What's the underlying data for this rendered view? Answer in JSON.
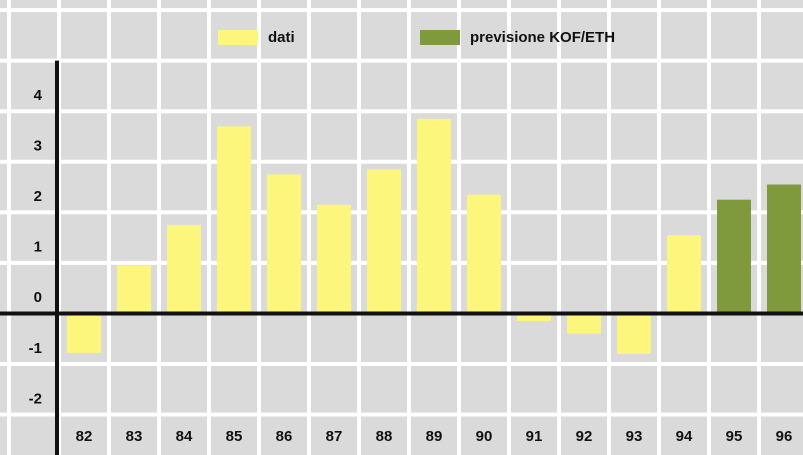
{
  "chart_data": {
    "type": "bar",
    "categories": [
      "82",
      "83",
      "84",
      "85",
      "86",
      "87",
      "88",
      "89",
      "90",
      "91",
      "92",
      "93",
      "94",
      "95",
      "96"
    ],
    "series": [
      {
        "name": "dati",
        "color": "#fcf67c",
        "values": [
          -0.78,
          0.95,
          1.75,
          3.7,
          2.75,
          2.15,
          2.85,
          3.85,
          2.35,
          -0.15,
          -0.4,
          -0.8,
          1.55,
          null,
          null
        ]
      },
      {
        "name": "previsione KOF/ETH",
        "color": "#7f9a3c",
        "values": [
          null,
          null,
          null,
          null,
          null,
          null,
          null,
          null,
          null,
          null,
          null,
          null,
          null,
          2.25,
          2.55
        ]
      }
    ],
    "ylim": [
      -2.8,
      6.2
    ],
    "yticks": [
      -2,
      -1,
      0,
      1,
      2,
      3,
      4
    ],
    "grid": true,
    "legend": "top"
  }
}
